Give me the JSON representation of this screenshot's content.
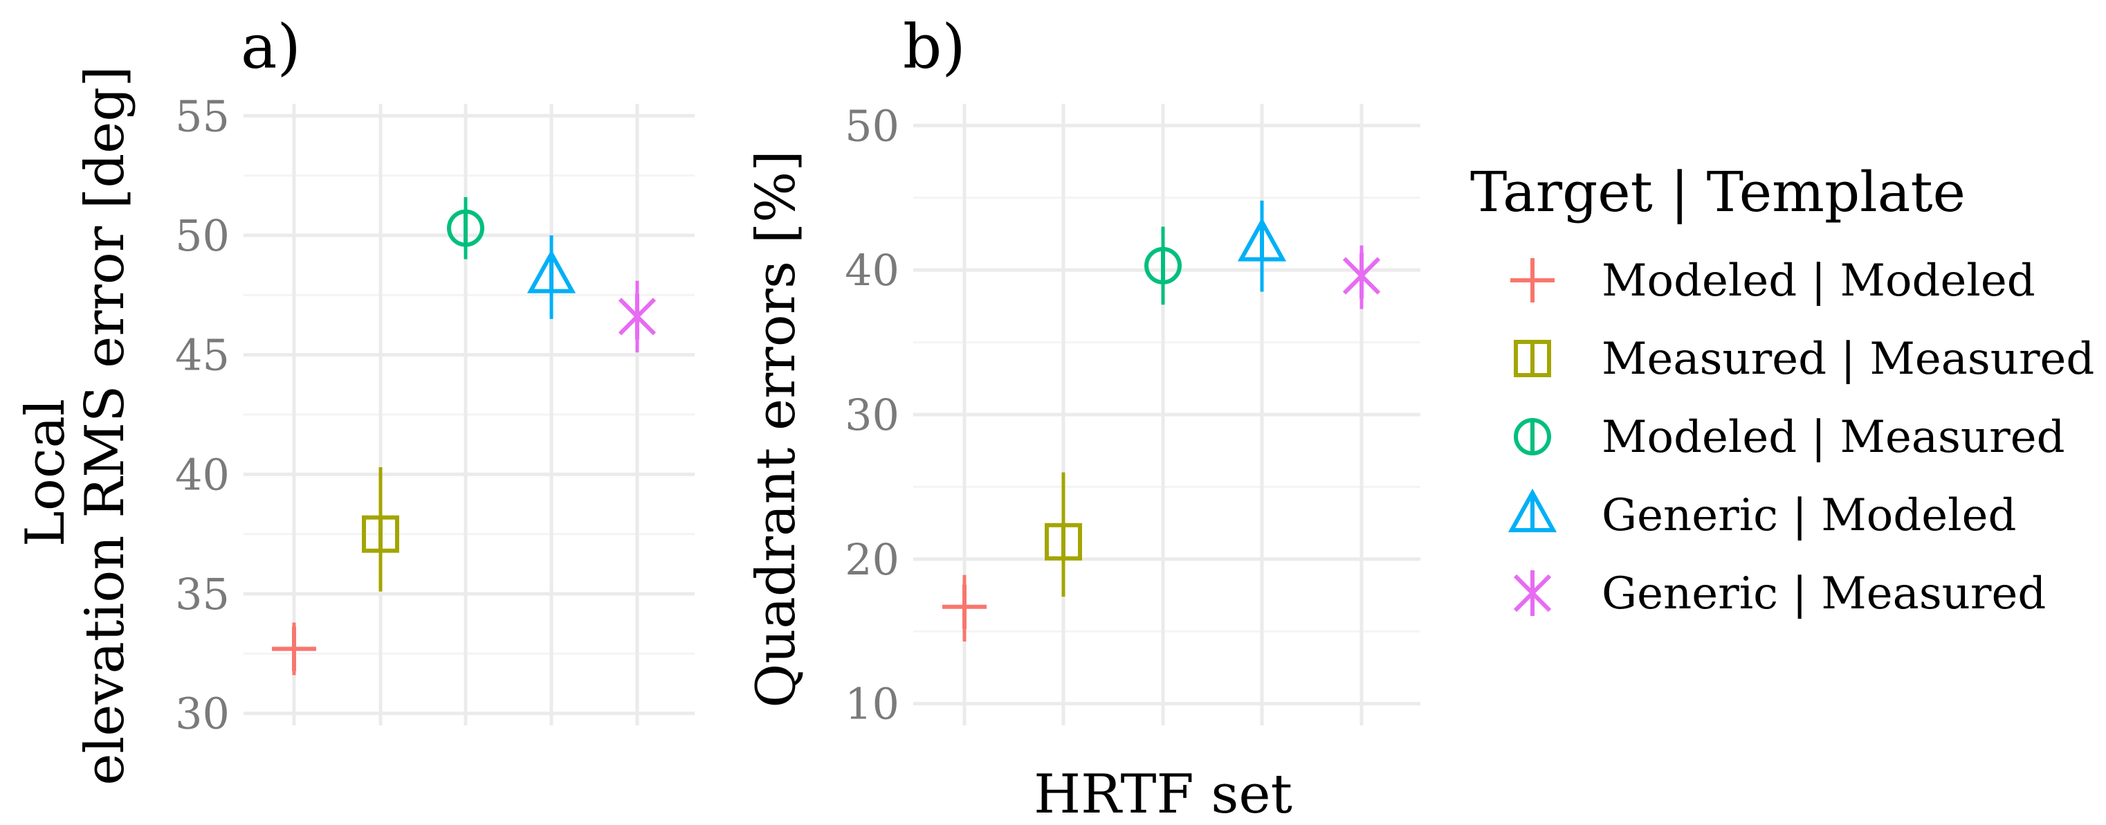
{
  "chart_data": [
    {
      "type": "scatter",
      "panel_label": "a)",
      "ylabel_lines": [
        "Local",
        "elevation RMS error [deg]"
      ],
      "xlabel": "",
      "ylim": [
        29.5,
        55.5
      ],
      "y_ticks": [
        30,
        35,
        40,
        45,
        50,
        55
      ],
      "grid": true,
      "points": [
        {
          "group": "Modeled | Modeled",
          "y": 32.7,
          "ymin": 31.6,
          "ymax": 33.8
        },
        {
          "group": "Measured | Measured",
          "y": 37.5,
          "ymin": 35.1,
          "ymax": 40.3
        },
        {
          "group": "Modeled | Measured",
          "y": 50.3,
          "ymin": 49.0,
          "ymax": 51.6
        },
        {
          "group": "Generic | Modeled",
          "y": 48.3,
          "ymin": 46.5,
          "ymax": 50.0
        },
        {
          "group": "Generic | Measured",
          "y": 46.6,
          "ymin": 45.1,
          "ymax": 48.1
        }
      ]
    },
    {
      "type": "scatter",
      "panel_label": "b)",
      "ylabel": "Quadrant errors [%]",
      "xlabel": "HRTF set",
      "ylim": [
        8.5,
        51.5
      ],
      "y_ticks": [
        10,
        20,
        30,
        40,
        50
      ],
      "grid": true,
      "points": [
        {
          "group": "Modeled | Modeled",
          "y": 16.7,
          "ymin": 14.3,
          "ymax": 18.9
        },
        {
          "group": "Measured | Measured",
          "y": 21.2,
          "ymin": 17.4,
          "ymax": 26.0
        },
        {
          "group": "Modeled | Measured",
          "y": 40.3,
          "ymin": 37.6,
          "ymax": 43.0
        },
        {
          "group": "Generic | Modeled",
          "y": 41.8,
          "ymin": 38.5,
          "ymax": 44.8
        },
        {
          "group": "Generic | Measured",
          "y": 39.6,
          "ymin": 37.3,
          "ymax": 41.7
        }
      ]
    }
  ],
  "legend": {
    "title": "Target | Template",
    "placement": "right",
    "entries": [
      {
        "label": "Modeled | Modeled",
        "shape": "plus",
        "color": "#F8766D"
      },
      {
        "label": "Measured | Measured",
        "shape": "square-plus",
        "color": "#A3A500"
      },
      {
        "label": "Modeled | Measured",
        "shape": "circle-plus",
        "color": "#00BF7D"
      },
      {
        "label": "Generic | Modeled",
        "shape": "triangle-plus",
        "color": "#00B0F6"
      },
      {
        "label": "Generic | Measured",
        "shape": "asterisk",
        "color": "#E76BF3"
      }
    ]
  }
}
